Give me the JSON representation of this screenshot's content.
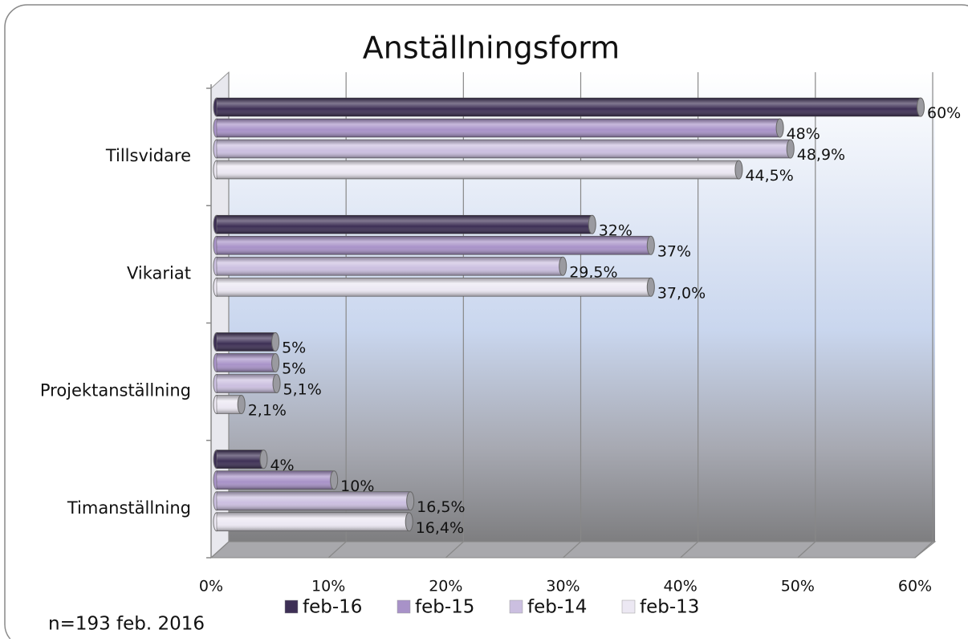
{
  "chart_data": {
    "type": "bar",
    "orientation": "horizontal",
    "title": "Anställningsform",
    "categories": [
      "Tillsvidare",
      "Vikariat",
      "Projektanställning",
      "Timanställning"
    ],
    "series": [
      {
        "name": "feb-16",
        "color": "#3d2f55",
        "values": [
          60,
          32,
          5,
          4
        ],
        "value_labels": [
          "60%",
          "32%",
          "5%",
          "4%"
        ]
      },
      {
        "name": "feb-15",
        "color": "#a892c8",
        "values": [
          48,
          37,
          5,
          10
        ],
        "value_labels": [
          "48%",
          "37%",
          "5%",
          "10%"
        ]
      },
      {
        "name": "feb-14",
        "color": "#cbbfe0",
        "values": [
          48.9,
          29.5,
          5.1,
          16.5
        ],
        "value_labels": [
          "48,9%",
          "29,5%",
          "5,1%",
          "16,5%"
        ]
      },
      {
        "name": "feb-13",
        "color": "#ece8f3",
        "values": [
          44.5,
          37.0,
          2.1,
          16.4
        ],
        "value_labels": [
          "44,5%",
          "37,0%",
          "2,1%",
          "16,4%"
        ]
      }
    ],
    "xlim": [
      0,
      60
    ],
    "xticks": [
      {
        "value": 0,
        "label": "0%"
      },
      {
        "value": 10,
        "label": "10%"
      },
      {
        "value": 20,
        "label": "20%"
      },
      {
        "value": 30,
        "label": "30%"
      },
      {
        "value": 40,
        "label": "40%"
      },
      {
        "value": 50,
        "label": "50%"
      },
      {
        "value": 60,
        "label": "60%"
      }
    ],
    "grid": true,
    "legend": "bottom",
    "annotation": "n=193 feb. 2016"
  }
}
